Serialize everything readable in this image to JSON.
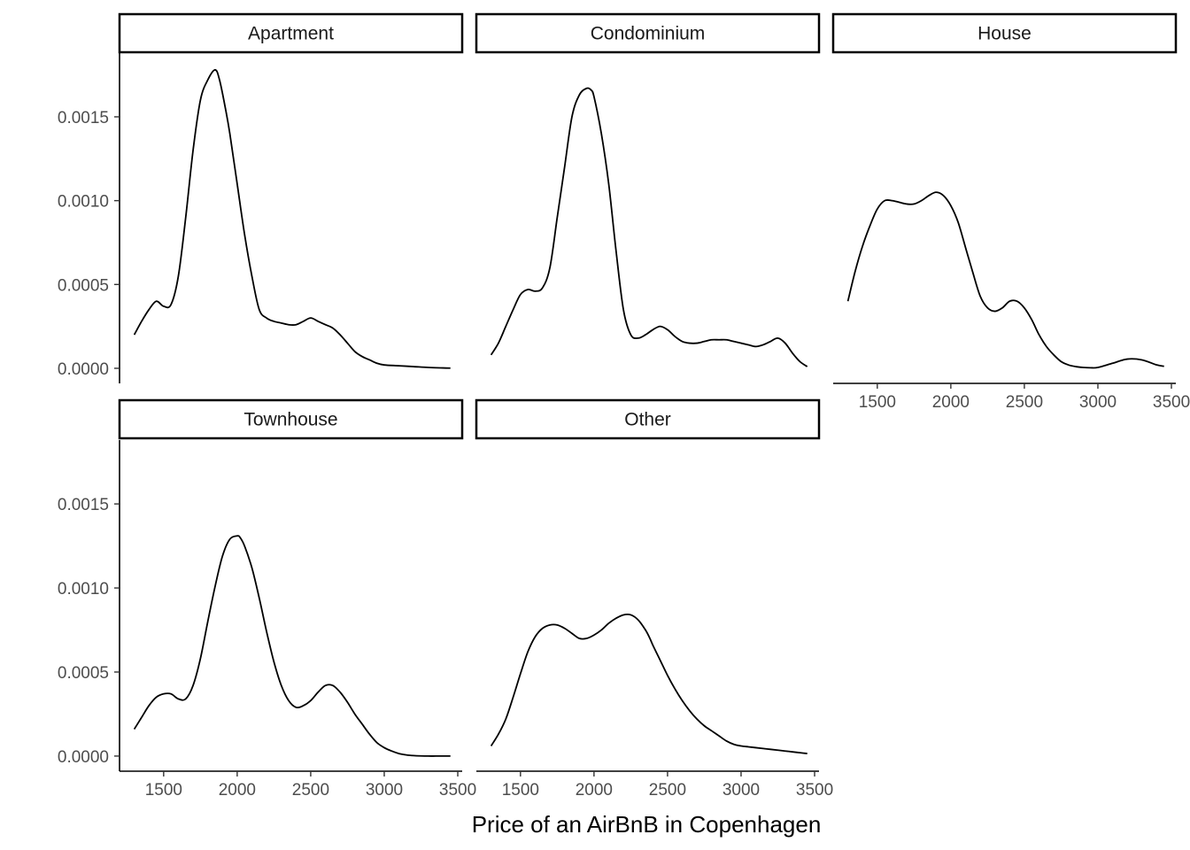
{
  "chart_data": {
    "type": "line",
    "plot_kind": "density facets",
    "xlabel": "Price of an AirBnB in Copenhagen",
    "ylabel": "",
    "xlim": [
      1200,
      3530
    ],
    "ylim": [
      -9e-05,
      0.00188
    ],
    "x_ticks": [
      1500,
      2000,
      2500,
      3000,
      3500
    ],
    "y_ticks": [
      0.0,
      0.0005,
      0.001,
      0.0015
    ],
    "y_tick_labels": [
      "0.0000",
      "0.0005",
      "0.0010",
      "0.0015"
    ],
    "grid": false,
    "legend": "none",
    "line_color": "#000000",
    "panels": [
      {
        "name": "Apartment",
        "x": [
          1300,
          1350,
          1400,
          1450,
          1500,
          1550,
          1600,
          1650,
          1700,
          1750,
          1800,
          1850,
          1880,
          1920,
          1950,
          2000,
          2050,
          2100,
          2150,
          2200,
          2250,
          2300,
          2350,
          2400,
          2450,
          2500,
          2550,
          2600,
          2650,
          2700,
          2750,
          2800,
          2850,
          2900,
          2950,
          3000,
          3100,
          3200,
          3300,
          3400,
          3450
        ],
        "y": [
          0.0002,
          0.00028,
          0.00035,
          0.0004,
          0.00037,
          0.00038,
          0.00055,
          0.0009,
          0.0013,
          0.0016,
          0.00172,
          0.00178,
          0.00172,
          0.00155,
          0.0014,
          0.0011,
          0.0008,
          0.00055,
          0.00035,
          0.0003,
          0.00028,
          0.00027,
          0.00026,
          0.00026,
          0.00028,
          0.0003,
          0.00028,
          0.00026,
          0.00024,
          0.0002,
          0.00015,
          0.0001,
          7e-05,
          5e-05,
          3e-05,
          2e-05,
          1.5e-05,
          1e-05,
          5e-06,
          2e-06,
          1e-06
        ]
      },
      {
        "name": "Condominium",
        "x": [
          1300,
          1350,
          1400,
          1450,
          1500,
          1550,
          1600,
          1650,
          1700,
          1750,
          1800,
          1850,
          1900,
          1950,
          1980,
          2000,
          2050,
          2100,
          2150,
          2200,
          2250,
          2300,
          2350,
          2400,
          2450,
          2500,
          2550,
          2600,
          2650,
          2700,
          2750,
          2800,
          2850,
          2900,
          2950,
          3000,
          3050,
          3100,
          3150,
          3200,
          3250,
          3300,
          3350,
          3400,
          3450
        ],
        "y": [
          8e-05,
          0.00015,
          0.00025,
          0.00035,
          0.00044,
          0.00047,
          0.00046,
          0.00048,
          0.0006,
          0.0009,
          0.0012,
          0.0015,
          0.00163,
          0.00167,
          0.00166,
          0.00162,
          0.0014,
          0.0011,
          0.0007,
          0.00035,
          0.0002,
          0.00018,
          0.0002,
          0.00023,
          0.00025,
          0.00023,
          0.00019,
          0.00016,
          0.00015,
          0.00015,
          0.00016,
          0.00017,
          0.00017,
          0.00017,
          0.00016,
          0.00015,
          0.00014,
          0.00013,
          0.00014,
          0.00016,
          0.00018,
          0.00015,
          9e-05,
          4e-05,
          1e-05
        ]
      },
      {
        "name": "House",
        "x": [
          1300,
          1350,
          1400,
          1450,
          1500,
          1550,
          1600,
          1650,
          1700,
          1750,
          1800,
          1850,
          1900,
          1950,
          2000,
          2050,
          2100,
          2150,
          2200,
          2250,
          2300,
          2350,
          2400,
          2450,
          2500,
          2550,
          2600,
          2650,
          2700,
          2750,
          2800,
          2850,
          2900,
          2950,
          3000,
          3100,
          3200,
          3300,
          3400,
          3450
        ],
        "y": [
          0.0004,
          0.00058,
          0.00073,
          0.00085,
          0.00095,
          0.001,
          0.001,
          0.00099,
          0.00098,
          0.00098,
          0.001,
          0.00103,
          0.00105,
          0.00103,
          0.00097,
          0.00087,
          0.00072,
          0.00057,
          0.00043,
          0.00036,
          0.00034,
          0.00036,
          0.0004,
          0.0004,
          0.00036,
          0.00029,
          0.0002,
          0.00013,
          8e-05,
          4e-05,
          2e-05,
          1e-05,
          5e-06,
          3e-06,
          5e-06,
          3e-05,
          5.5e-05,
          5e-05,
          2e-05,
          1.2e-05
        ]
      },
      {
        "name": "Townhouse",
        "x": [
          1300,
          1350,
          1400,
          1450,
          1500,
          1550,
          1600,
          1650,
          1700,
          1750,
          1800,
          1850,
          1900,
          1950,
          2000,
          2020,
          2050,
          2100,
          2150,
          2200,
          2250,
          2300,
          2350,
          2400,
          2450,
          2500,
          2550,
          2600,
          2650,
          2700,
          2750,
          2800,
          2850,
          2900,
          2950,
          3000,
          3050,
          3100,
          3150,
          3200,
          3250,
          3300,
          3350,
          3400,
          3450
        ],
        "y": [
          0.00016,
          0.00023,
          0.0003,
          0.00035,
          0.00037,
          0.00037,
          0.00034,
          0.00034,
          0.00042,
          0.00058,
          0.0008,
          0.00101,
          0.00119,
          0.00129,
          0.00131,
          0.0013,
          0.00125,
          0.00112,
          0.00094,
          0.00074,
          0.00056,
          0.00042,
          0.00033,
          0.00029,
          0.0003,
          0.00033,
          0.00038,
          0.00042,
          0.00042,
          0.00038,
          0.00032,
          0.00025,
          0.00019,
          0.00013,
          8e-05,
          5e-05,
          3e-05,
          1.5e-05,
          7e-06,
          3e-06,
          1e-06,
          0,
          0,
          0,
          0
        ]
      },
      {
        "name": "Other",
        "x": [
          1300,
          1350,
          1400,
          1450,
          1500,
          1550,
          1600,
          1650,
          1700,
          1750,
          1800,
          1850,
          1900,
          1950,
          2000,
          2050,
          2100,
          2150,
          2200,
          2250,
          2300,
          2350,
          2380,
          2400,
          2450,
          2500,
          2550,
          2600,
          2650,
          2700,
          2750,
          2800,
          2850,
          2900,
          2950,
          3000,
          3050,
          3100,
          3150,
          3200,
          3250,
          3300,
          3350,
          3400,
          3450
        ],
        "y": [
          6e-05,
          0.00013,
          0.00022,
          0.00035,
          0.00049,
          0.00062,
          0.00071,
          0.00076,
          0.00078,
          0.00078,
          0.00076,
          0.00073,
          0.0007,
          0.0007,
          0.00072,
          0.00075,
          0.00079,
          0.00082,
          0.00084,
          0.00084,
          0.00081,
          0.00075,
          0.0007,
          0.00066,
          0.00057,
          0.00048,
          0.0004,
          0.00033,
          0.00027,
          0.00022,
          0.00018,
          0.00015,
          0.00012,
          9e-05,
          7e-05,
          6e-05,
          5.5e-05,
          5e-05,
          4.5e-05,
          4e-05,
          3.5e-05,
          3e-05,
          2.5e-05,
          2e-05,
          1.5e-05
        ]
      }
    ]
  }
}
